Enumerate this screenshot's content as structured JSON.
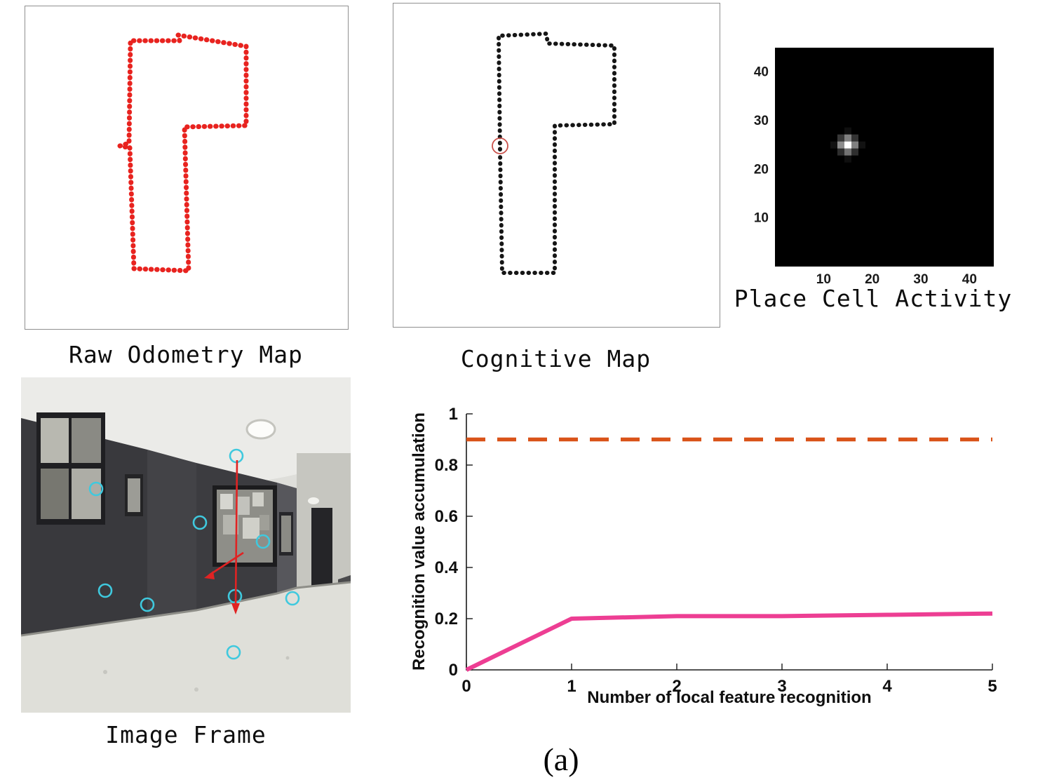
{
  "figure_caption": "(a)",
  "panels": {
    "raw_odometry": {
      "title": "Raw Odometry Map",
      "trajectory_color": "#e8231f"
    },
    "cognitive_map": {
      "title": "Cognitive Map",
      "trajectory_color": "#161616",
      "current_position_marker_color": "#c9504a"
    },
    "place_cell": {
      "title": "Place Cell Activity"
    },
    "image_frame": {
      "title": "Image Frame",
      "keypoint_color": "#3fc9de",
      "arrow_color": "#e02323"
    }
  },
  "chart_data": [
    {
      "type": "heatmap",
      "title": "Place Cell Activity",
      "xlabel": "",
      "ylabel": "",
      "x_ticks": [
        10,
        20,
        30,
        40
      ],
      "y_ticks": [
        10,
        20,
        30,
        40
      ],
      "xlim": [
        0,
        45
      ],
      "ylim": [
        0,
        45
      ],
      "background": "#000000",
      "cells": [
        {
          "x": 15,
          "y": 25,
          "value": 1.0
        }
      ],
      "note": "single bright active place cell on black field"
    },
    {
      "type": "line",
      "title": "",
      "xlabel": "Number of local feature recognition",
      "ylabel": "Recognition value accumulation",
      "xlim": [
        0,
        5
      ],
      "ylim": [
        0,
        1
      ],
      "x_ticks": [
        0,
        1,
        2,
        3,
        4,
        5
      ],
      "y_ticks": [
        0,
        0.2,
        0.4,
        0.6,
        0.8,
        1
      ],
      "grid": false,
      "legend": "none",
      "series": [
        {
          "name": "recognition value accumulation",
          "color": "#ed3e93",
          "style": "solid",
          "x": [
            0,
            1,
            2,
            3,
            4,
            5
          ],
          "values": [
            0,
            0.2,
            0.21,
            0.21,
            0.215,
            0.22
          ]
        },
        {
          "name": "recognition threshold",
          "color": "#d95319",
          "style": "dashed",
          "x": [
            0,
            5
          ],
          "values": [
            0.9,
            0.9
          ]
        }
      ]
    }
  ]
}
